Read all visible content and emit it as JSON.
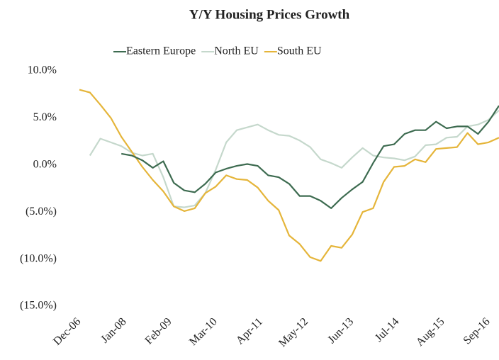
{
  "chart_data": {
    "type": "line",
    "title": "Y/Y Housing Prices Growth",
    "x": [
      0,
      3,
      6,
      9,
      12,
      15,
      18,
      21,
      24,
      27,
      30,
      33,
      36,
      39,
      42,
      45,
      48,
      51,
      54,
      57,
      60,
      63,
      66,
      69,
      72,
      75,
      78,
      81,
      84,
      87,
      90,
      93,
      96,
      99,
      102,
      105,
      108,
      111,
      114,
      117,
      120
    ],
    "xlim": [
      0,
      120
    ],
    "xticks": [
      {
        "value": 0,
        "label": "Dec-06"
      },
      {
        "value": 13,
        "label": "Jan-08"
      },
      {
        "value": 26,
        "label": "Feb-09"
      },
      {
        "value": 39,
        "label": "Mar-10"
      },
      {
        "value": 52,
        "label": "Apr-11"
      },
      {
        "value": 65,
        "label": "May-12"
      },
      {
        "value": 78,
        "label": "Jun-13"
      },
      {
        "value": 91,
        "label": "Jul-14"
      },
      {
        "value": 104,
        "label": "Aug-15"
      },
      {
        "value": 117,
        "label": "Sep-16"
      }
    ],
    "ylim": [
      -15,
      10
    ],
    "yticks": [
      {
        "value": 10,
        "label": "10.0%"
      },
      {
        "value": 5,
        "label": "5.0%"
      },
      {
        "value": 0,
        "label": "0.0%"
      },
      {
        "value": -5,
        "label": "(5.0%)"
      },
      {
        "value": -10,
        "label": "(10.0%)"
      },
      {
        "value": -15,
        "label": "(15.0%)"
      }
    ],
    "grid": false,
    "legend": "top",
    "series": [
      {
        "name": "Eastern Europe",
        "color": "#3d6b50",
        "values": [
          null,
          null,
          null,
          null,
          1.2,
          1.0,
          0.5,
          -0.3,
          0.4,
          -1.9,
          -2.7,
          -2.9,
          -2.0,
          -0.8,
          -0.4,
          -0.1,
          0.1,
          -0.1,
          -1.1,
          -1.3,
          -2.0,
          -3.3,
          -3.3,
          -3.8,
          -4.6,
          -3.5,
          -2.6,
          -1.8,
          0.2,
          2.0,
          2.2,
          3.3,
          3.7,
          3.7,
          4.6,
          3.9,
          4.1,
          4.1,
          3.3,
          4.6,
          6.3
        ]
      },
      {
        "name": "North EU",
        "color": "#c5d8cc",
        "values": [
          null,
          1.0,
          2.8,
          2.4,
          2.0,
          1.3,
          1.0,
          1.2,
          -1.3,
          -4.4,
          -4.5,
          -4.3,
          -3.0,
          -0.5,
          2.4,
          3.7,
          4.0,
          4.3,
          3.7,
          3.2,
          3.1,
          2.6,
          1.9,
          0.6,
          0.2,
          -0.3,
          0.8,
          1.8,
          1.0,
          0.8,
          0.7,
          0.5,
          0.9,
          2.1,
          2.2,
          2.9,
          3.0,
          4.1,
          4.3,
          4.8,
          5.8
        ]
      },
      {
        "name": "South EU",
        "color": "#e5b53a",
        "values": [
          8.0,
          7.7,
          6.4,
          5.0,
          3.0,
          1.4,
          -0.2,
          -1.6,
          -2.8,
          -4.4,
          -4.9,
          -4.6,
          -3.0,
          -2.3,
          -1.1,
          -1.5,
          -1.6,
          -2.4,
          -3.8,
          -4.8,
          -7.5,
          -8.4,
          -9.8,
          -10.2,
          -8.6,
          -8.8,
          -7.4,
          -5.0,
          -4.6,
          -1.8,
          -0.2,
          -0.1,
          0.6,
          0.3,
          1.7,
          1.8,
          1.9,
          3.4,
          2.2,
          2.4,
          2.9
        ]
      }
    ]
  }
}
